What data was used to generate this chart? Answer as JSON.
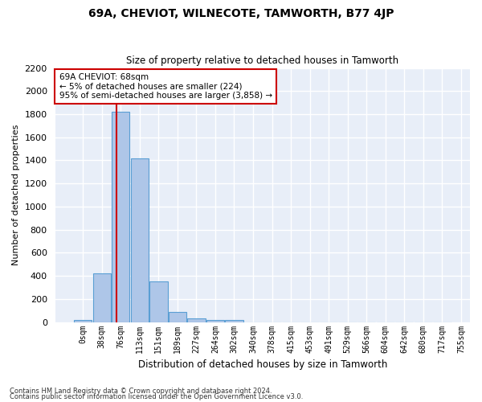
{
  "title": "69A, CHEVIOT, WILNECOTE, TAMWORTH, B77 4JP",
  "subtitle": "Size of property relative to detached houses in Tamworth",
  "xlabel": "Distribution of detached houses by size in Tamworth",
  "ylabel": "Number of detached properties",
  "bin_labels": [
    "0sqm",
    "38sqm",
    "76sqm",
    "113sqm",
    "151sqm",
    "189sqm",
    "227sqm",
    "264sqm",
    "302sqm",
    "340sqm",
    "378sqm",
    "415sqm",
    "453sqm",
    "491sqm",
    "529sqm",
    "566sqm",
    "604sqm",
    "642sqm",
    "680sqm",
    "717sqm",
    "755sqm"
  ],
  "bar_values": [
    20,
    420,
    1820,
    1420,
    350,
    85,
    30,
    20,
    20,
    0,
    0,
    0,
    0,
    0,
    0,
    0,
    0,
    0,
    0,
    0
  ],
  "bar_color": "#aec6e8",
  "bar_edge_color": "#5a9fd4",
  "background_color": "#e8eef8",
  "grid_color": "#ffffff",
  "annotation_text": "69A CHEVIOT: 68sqm\n← 5% of detached houses are smaller (224)\n95% of semi-detached houses are larger (3,858) →",
  "annotation_box_color": "#ffffff",
  "annotation_box_edge_color": "#cc0000",
  "marker_line_color": "#cc0000",
  "ylim": [
    0,
    2200
  ],
  "yticks": [
    0,
    200,
    400,
    600,
    800,
    1000,
    1200,
    1400,
    1600,
    1800,
    2000,
    2200
  ],
  "footer_line1": "Contains HM Land Registry data © Crown copyright and database right 2024.",
  "footer_line2": "Contains public sector information licensed under the Open Government Licence v3.0."
}
